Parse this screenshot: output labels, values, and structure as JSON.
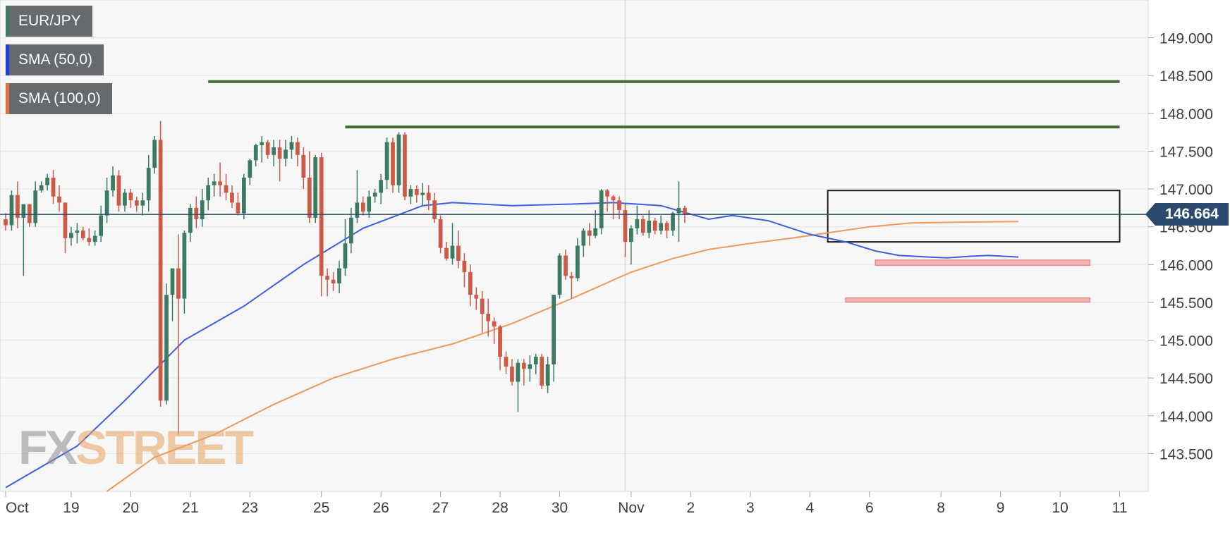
{
  "legend": [
    {
      "label": "EUR/JPY",
      "color": "#3d7a62"
    },
    {
      "label": "SMA (50,0)",
      "color": "#1d3fe0"
    },
    {
      "label": "SMA (100,0)",
      "color": "#e5743a"
    }
  ],
  "watermark": {
    "part1": "FX",
    "part2": "STREET"
  },
  "current_price": {
    "label": "146.664",
    "value": 146.664
  },
  "colors": {
    "up": "#3d7a62",
    "down": "#cc5a47",
    "sma50": "#3a5fe0",
    "sma100": "#ee9a5a",
    "resistance": "#3f6e2e",
    "support": "#e98b8b",
    "price_line": "#2c4a6b"
  },
  "chart_data": {
    "type": "candlestick",
    "symbol": "EUR/JPY",
    "ylim": [
      143.0,
      149.5
    ],
    "y_ticks": [
      "149.000",
      "148.500",
      "148.000",
      "147.500",
      "147.000",
      "146.500",
      "146.000",
      "145.500",
      "145.000",
      "144.500",
      "144.000",
      "143.500"
    ],
    "y_tick_values": [
      149.0,
      148.5,
      148.0,
      147.5,
      147.0,
      146.5,
      146.0,
      145.5,
      145.0,
      144.5,
      144.0,
      143.5
    ],
    "x_labels": [
      "Oct",
      "19",
      "20",
      "21",
      "23",
      "25",
      "26",
      "27",
      "28",
      "30",
      "Nov",
      "2",
      "3",
      "4",
      "6",
      "8",
      "9",
      "10",
      "11"
    ],
    "x_label_bars": [
      0,
      11,
      21,
      31,
      41,
      53,
      63,
      73,
      83,
      93,
      105,
      115,
      125,
      135,
      145,
      157,
      167,
      177,
      187
    ],
    "candles": [
      [
        146.6,
        146.68,
        146.45,
        146.52
      ],
      [
        146.52,
        146.98,
        146.45,
        146.92
      ],
      [
        146.92,
        147.1,
        146.48,
        146.62
      ],
      [
        146.62,
        146.8,
        145.85,
        146.8
      ],
      [
        146.8,
        146.8,
        146.5,
        146.55
      ],
      [
        146.55,
        147.1,
        146.5,
        146.98
      ],
      [
        146.98,
        147.1,
        146.95,
        147.05
      ],
      [
        147.05,
        147.2,
        146.98,
        147.15
      ],
      [
        147.15,
        147.25,
        146.8,
        146.9
      ],
      [
        146.9,
        147.05,
        146.7,
        146.82
      ],
      [
        146.82,
        146.82,
        146.15,
        146.35
      ],
      [
        146.35,
        146.5,
        146.25,
        146.42
      ],
      [
        146.42,
        146.55,
        146.28,
        146.45
      ],
      [
        146.45,
        146.5,
        146.32,
        146.35
      ],
      [
        146.35,
        146.48,
        146.25,
        146.3
      ],
      [
        146.3,
        146.45,
        146.25,
        146.38
      ],
      [
        146.38,
        146.78,
        146.3,
        146.65
      ],
      [
        146.65,
        147.15,
        146.55,
        146.98
      ],
      [
        146.98,
        147.3,
        146.9,
        147.18
      ],
      [
        147.18,
        147.25,
        146.7,
        146.78
      ],
      [
        146.78,
        147.0,
        146.7,
        146.95
      ],
      [
        146.95,
        147.0,
        146.75,
        146.85
      ],
      [
        146.85,
        146.9,
        146.7,
        146.78
      ],
      [
        146.78,
        146.95,
        146.65,
        146.85
      ],
      [
        146.85,
        147.45,
        146.7,
        147.28
      ],
      [
        147.28,
        147.7,
        147.2,
        147.65
      ],
      [
        147.65,
        147.9,
        144.12,
        144.2
      ],
      [
        144.2,
        145.75,
        144.15,
        145.6
      ],
      [
        145.6,
        145.95,
        145.25,
        145.95
      ],
      [
        145.95,
        146.4,
        143.75,
        145.55
      ],
      [
        145.55,
        146.45,
        145.35,
        146.42
      ],
      [
        146.42,
        146.8,
        146.3,
        146.75
      ],
      [
        146.75,
        146.9,
        146.48,
        146.6
      ],
      [
        146.6,
        147.0,
        146.5,
        146.85
      ],
      [
        146.85,
        147.15,
        146.72,
        147.05
      ],
      [
        147.05,
        147.2,
        146.9,
        147.1
      ],
      [
        147.1,
        147.35,
        146.9,
        147.05
      ],
      [
        147.05,
        147.2,
        146.85,
        146.95
      ],
      [
        146.95,
        147.05,
        146.75,
        146.82
      ],
      [
        146.82,
        146.95,
        146.65,
        146.68
      ],
      [
        146.68,
        147.2,
        146.6,
        147.15
      ],
      [
        147.15,
        147.4,
        147.05,
        147.38
      ],
      [
        147.38,
        147.6,
        147.3,
        147.58
      ],
      [
        147.58,
        147.7,
        147.35,
        147.62
      ],
      [
        147.62,
        147.65,
        147.4,
        147.45
      ],
      [
        147.45,
        147.65,
        147.3,
        147.55
      ],
      [
        147.55,
        147.65,
        147.1,
        147.4
      ],
      [
        147.4,
        147.65,
        147.3,
        147.52
      ],
      [
        147.52,
        147.7,
        147.4,
        147.62
      ],
      [
        147.62,
        147.68,
        147.3,
        147.45
      ],
      [
        147.45,
        147.55,
        147.0,
        147.15
      ],
      [
        147.15,
        147.5,
        146.55,
        146.62
      ],
      [
        146.62,
        147.45,
        146.55,
        147.42
      ],
      [
        147.42,
        147.48,
        145.58,
        145.85
      ],
      [
        145.85,
        145.95,
        145.58,
        145.8
      ],
      [
        145.8,
        145.9,
        145.65,
        145.75
      ],
      [
        145.75,
        146.05,
        145.62,
        145.95
      ],
      [
        145.95,
        146.6,
        145.85,
        146.28
      ],
      [
        146.28,
        146.75,
        146.15,
        146.62
      ],
      [
        146.62,
        147.25,
        146.55,
        146.82
      ],
      [
        146.82,
        146.9,
        146.65,
        146.7
      ],
      [
        146.7,
        146.98,
        146.62,
        146.9
      ],
      [
        146.9,
        147.0,
        146.82,
        146.95
      ],
      [
        146.95,
        147.2,
        146.8,
        147.12
      ],
      [
        147.12,
        147.68,
        147.0,
        147.62
      ],
      [
        147.62,
        147.68,
        146.95,
        147.05
      ],
      [
        147.05,
        147.75,
        146.95,
        147.72
      ],
      [
        147.72,
        147.75,
        146.85,
        146.9
      ],
      [
        146.9,
        147.05,
        146.8,
        147.0
      ],
      [
        147.0,
        147.05,
        146.82,
        146.92
      ],
      [
        146.92,
        147.08,
        146.78,
        146.95
      ],
      [
        146.95,
        147.05,
        146.72,
        146.85
      ],
      [
        146.85,
        146.95,
        146.55,
        146.6
      ],
      [
        146.6,
        146.65,
        146.15,
        146.22
      ],
      [
        146.22,
        146.3,
        146.05,
        146.08
      ],
      [
        146.08,
        146.55,
        146.0,
        146.25
      ],
      [
        146.25,
        146.45,
        145.95,
        146.05
      ],
      [
        146.05,
        146.15,
        145.7,
        145.9
      ],
      [
        145.9,
        146.0,
        145.45,
        145.6
      ],
      [
        145.6,
        145.7,
        145.4,
        145.55
      ],
      [
        145.55,
        145.65,
        145.1,
        145.35
      ],
      [
        145.35,
        145.55,
        145.05,
        145.25
      ],
      [
        145.25,
        145.3,
        144.95,
        145.18
      ],
      [
        145.18,
        145.2,
        144.6,
        144.78
      ],
      [
        144.78,
        144.85,
        144.55,
        144.65
      ],
      [
        144.65,
        144.75,
        144.4,
        144.45
      ],
      [
        144.45,
        144.75,
        144.05,
        144.7
      ],
      [
        144.7,
        144.75,
        144.4,
        144.62
      ],
      [
        144.62,
        144.8,
        144.45,
        144.68
      ],
      [
        144.68,
        144.82,
        144.55,
        144.78
      ],
      [
        144.78,
        144.82,
        144.35,
        144.4
      ],
      [
        144.4,
        144.78,
        144.3,
        144.68
      ],
      [
        144.68,
        145.6,
        144.45,
        145.6
      ],
      [
        145.6,
        146.15,
        145.55,
        146.12
      ],
      [
        146.12,
        146.2,
        145.8,
        145.85
      ],
      [
        145.85,
        145.9,
        145.55,
        145.82
      ],
      [
        145.82,
        146.35,
        145.78,
        146.25
      ],
      [
        146.25,
        146.48,
        146.1,
        146.45
      ],
      [
        146.45,
        146.55,
        146.25,
        146.38
      ],
      [
        146.38,
        146.72,
        146.35,
        146.48
      ],
      [
        146.48,
        147.0,
        146.4,
        146.98
      ],
      [
        146.98,
        147.0,
        146.7,
        146.9
      ],
      [
        146.9,
        146.92,
        146.6,
        146.85
      ],
      [
        146.85,
        146.9,
        146.6,
        146.72
      ],
      [
        146.72,
        146.8,
        146.1,
        146.3
      ],
      [
        146.3,
        146.52,
        146.0,
        146.48
      ],
      [
        146.48,
        146.78,
        146.4,
        146.6
      ],
      [
        146.6,
        146.65,
        146.38,
        146.42
      ],
      [
        146.42,
        146.72,
        146.35,
        146.58
      ],
      [
        146.58,
        146.62,
        146.4,
        146.45
      ],
      [
        146.45,
        146.65,
        146.4,
        146.55
      ],
      [
        146.55,
        146.58,
        146.35,
        146.45
      ],
      [
        146.45,
        146.7,
        146.38,
        146.68
      ],
      [
        146.68,
        147.1,
        146.3,
        146.75
      ],
      [
        146.75,
        146.78,
        146.55,
        146.66
      ]
    ],
    "x_span_bars": 188,
    "sma50": [
      [
        0,
        143.05
      ],
      [
        12,
        143.6
      ],
      [
        20,
        144.2
      ],
      [
        30,
        145.0
      ],
      [
        40,
        145.45
      ],
      [
        50,
        146.0
      ],
      [
        60,
        146.48
      ],
      [
        70,
        146.78
      ],
      [
        75,
        146.82
      ],
      [
        85,
        146.78
      ],
      [
        95,
        146.8
      ],
      [
        102,
        146.82
      ],
      [
        110,
        146.78
      ],
      [
        118,
        146.6
      ],
      [
        122,
        146.65
      ],
      [
        128,
        146.58
      ],
      [
        135,
        146.4
      ],
      [
        141,
        146.3
      ],
      [
        146,
        146.18
      ],
      [
        150,
        146.12
      ],
      [
        155,
        146.1
      ],
      [
        158,
        146.09
      ],
      [
        162,
        146.11
      ],
      [
        165,
        146.12
      ],
      [
        170,
        146.1
      ]
    ],
    "sma100": [
      [
        17,
        143.0
      ],
      [
        25,
        143.45
      ],
      [
        35,
        143.75
      ],
      [
        45,
        144.15
      ],
      [
        55,
        144.5
      ],
      [
        65,
        144.75
      ],
      [
        75,
        144.95
      ],
      [
        85,
        145.22
      ],
      [
        95,
        145.55
      ],
      [
        105,
        145.9
      ],
      [
        112,
        146.08
      ],
      [
        118,
        146.2
      ],
      [
        125,
        146.28
      ],
      [
        132,
        146.35
      ],
      [
        138,
        146.42
      ],
      [
        145,
        146.5
      ],
      [
        152,
        146.55
      ],
      [
        160,
        146.56
      ],
      [
        170,
        146.57
      ]
    ],
    "resistance": [
      {
        "from_bar": 34,
        "to_bar": 187,
        "value": 148.42
      },
      {
        "from_bar": 57,
        "to_bar": 187,
        "value": 147.82
      }
    ],
    "range_box": {
      "from_bar": 138,
      "to_bar": 187,
      "top": 146.98,
      "bottom": 146.3
    },
    "support_zones": [
      {
        "from_bar": 146,
        "to_bar": 182,
        "top": 146.06,
        "bottom": 145.99
      },
      {
        "from_bar": 141,
        "to_bar": 182,
        "top": 145.56,
        "bottom": 145.51
      }
    ],
    "vline_bar": 104
  }
}
